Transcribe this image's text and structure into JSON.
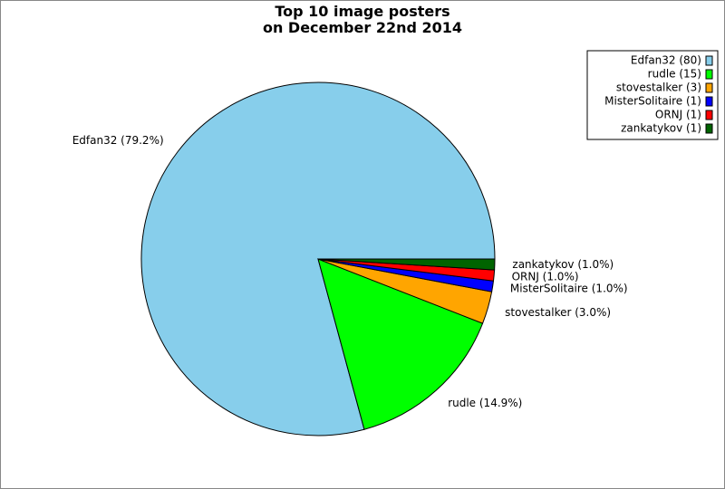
{
  "chart_data": {
    "type": "pie",
    "title": "Top 10 image posters\non December 22nd 2014",
    "categories": [
      "Edfan32",
      "rudle",
      "stovestalker",
      "MisterSolitaire",
      "ORNJ",
      "zankatykov"
    ],
    "values": [
      80,
      15,
      3,
      1,
      1,
      1
    ],
    "colors": [
      "#87ceeb",
      "#00ff00",
      "#ffa500",
      "#0000ff",
      "#ff0000",
      "#006400"
    ],
    "labels": [
      "Edfan32 (79.2%)",
      "rudle (14.9%)",
      "stovestalker (3.0%)",
      "MisterSolitaire (1.0%)",
      "ORNJ (1.0%)",
      "zankatykov (1.0%)"
    ],
    "legend_labels": [
      "Edfan32 (80)",
      "rudle (15)",
      "stovestalker (3)",
      "MisterSolitaire (1)",
      "ORNJ (1)",
      "zankatykov (1)"
    ],
    "legend": "upper right"
  }
}
